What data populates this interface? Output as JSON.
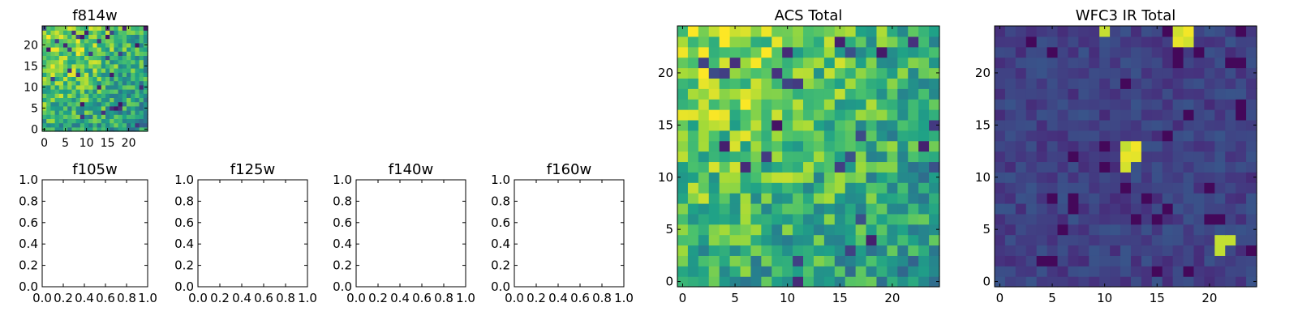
{
  "figure": {
    "heatmap_colors": [
      "#440154",
      "#46327e",
      "#365c8d",
      "#277f8e",
      "#1fa187",
      "#4ac16d",
      "#a0da39",
      "#fde725"
    ]
  },
  "chart_data": [
    {
      "type": "heatmap",
      "title": "f814w",
      "grid_size": 25,
      "xlim": [
        -0.5,
        24.5
      ],
      "ylim": [
        -0.5,
        24.5
      ],
      "xticks": [
        0,
        5,
        10,
        15,
        20
      ],
      "yticks": [
        0,
        5,
        10,
        15,
        20
      ],
      "field_model": "acs"
    },
    {
      "type": "empty",
      "title": "f105w",
      "xlim": [
        0,
        1
      ],
      "ylim": [
        0,
        1
      ],
      "xticks": [
        "0.0",
        "0.2",
        "0.4",
        "0.6",
        "0.8",
        "1.0"
      ],
      "yticks": [
        "0.0",
        "0.2",
        "0.4",
        "0.6",
        "0.8",
        "1.0"
      ]
    },
    {
      "type": "empty",
      "title": "f125w",
      "xlim": [
        0,
        1
      ],
      "ylim": [
        0,
        1
      ],
      "xticks": [
        "0.0",
        "0.2",
        "0.4",
        "0.6",
        "0.8",
        "1.0"
      ],
      "yticks": [
        "0.0",
        "0.2",
        "0.4",
        "0.6",
        "0.8",
        "1.0"
      ]
    },
    {
      "type": "empty",
      "title": "f140w",
      "xlim": [
        0,
        1
      ],
      "ylim": [
        0,
        1
      ],
      "xticks": [
        "0.0",
        "0.2",
        "0.4",
        "0.6",
        "0.8",
        "1.0"
      ],
      "yticks": [
        "0.0",
        "0.2",
        "0.4",
        "0.6",
        "0.8",
        "1.0"
      ]
    },
    {
      "type": "empty",
      "title": "f160w",
      "xlim": [
        0,
        1
      ],
      "ylim": [
        0,
        1
      ],
      "xticks": [
        "0.0",
        "0.2",
        "0.4",
        "0.6",
        "0.8",
        "1.0"
      ],
      "yticks": [
        "0.0",
        "0.2",
        "0.4",
        "0.6",
        "0.8",
        "1.0"
      ]
    },
    {
      "type": "heatmap",
      "title": "ACS Total",
      "grid_size": 25,
      "xlim": [
        -0.5,
        24.5
      ],
      "ylim": [
        -0.5,
        24.5
      ],
      "xticks": [
        0,
        5,
        10,
        15,
        20
      ],
      "yticks": [
        0,
        5,
        10,
        15,
        20
      ],
      "field_model": "acs"
    },
    {
      "type": "heatmap",
      "title": "WFC3 IR Total",
      "grid_size": 25,
      "xlim": [
        -0.5,
        24.5
      ],
      "ylim": [
        -0.5,
        24.5
      ],
      "xticks": [
        0,
        5,
        10,
        15,
        20
      ],
      "yticks": [
        0,
        5,
        10,
        15,
        20
      ],
      "field_model": "ir",
      "bright_pixels": [
        [
          10,
          24
        ],
        [
          17,
          24
        ],
        [
          18,
          24
        ],
        [
          17,
          23
        ],
        [
          18,
          23
        ],
        [
          12,
          13
        ],
        [
          13,
          13
        ],
        [
          12,
          12
        ],
        [
          13,
          12
        ],
        [
          12,
          11
        ],
        [
          21,
          4
        ],
        [
          22,
          4
        ],
        [
          21,
          3
        ]
      ]
    }
  ]
}
